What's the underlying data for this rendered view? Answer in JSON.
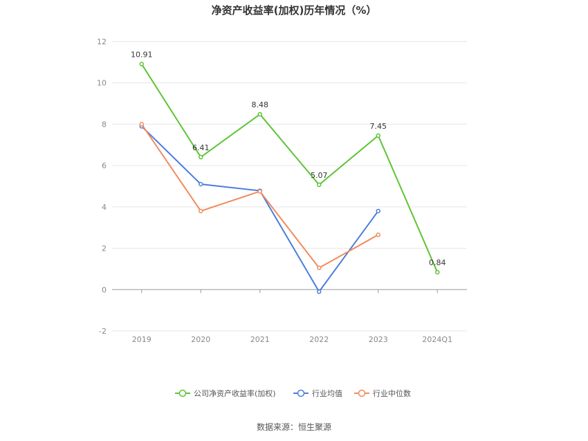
{
  "chart_data": {
    "type": "line",
    "title": "净资产收益率(加权)历年情况（%）",
    "categories": [
      "2019",
      "2020",
      "2021",
      "2022",
      "2023",
      "2024Q1"
    ],
    "series": [
      {
        "name": "公司净资产收益率(加权)",
        "color": "#5cc434",
        "values": [
          10.91,
          6.41,
          8.48,
          5.07,
          7.45,
          0.84
        ],
        "labels": [
          "10.91",
          "6.41",
          "8.48",
          "5.07",
          "7.45",
          "0.84"
        ]
      },
      {
        "name": "行业均值",
        "color": "#4a7edb",
        "values": [
          7.9,
          5.1,
          4.78,
          -0.1,
          3.8,
          null
        ]
      },
      {
        "name": "行业中位数",
        "color": "#f28a5b",
        "values": [
          8.0,
          3.8,
          4.75,
          1.05,
          2.65,
          null
        ]
      }
    ],
    "ylim": [
      -2,
      12
    ],
    "yticks": [
      "-2",
      "0",
      "2",
      "4",
      "6",
      "8",
      "10",
      "12"
    ],
    "grid": true,
    "legend": "bottom",
    "source": "数据来源：恒生聚源"
  }
}
